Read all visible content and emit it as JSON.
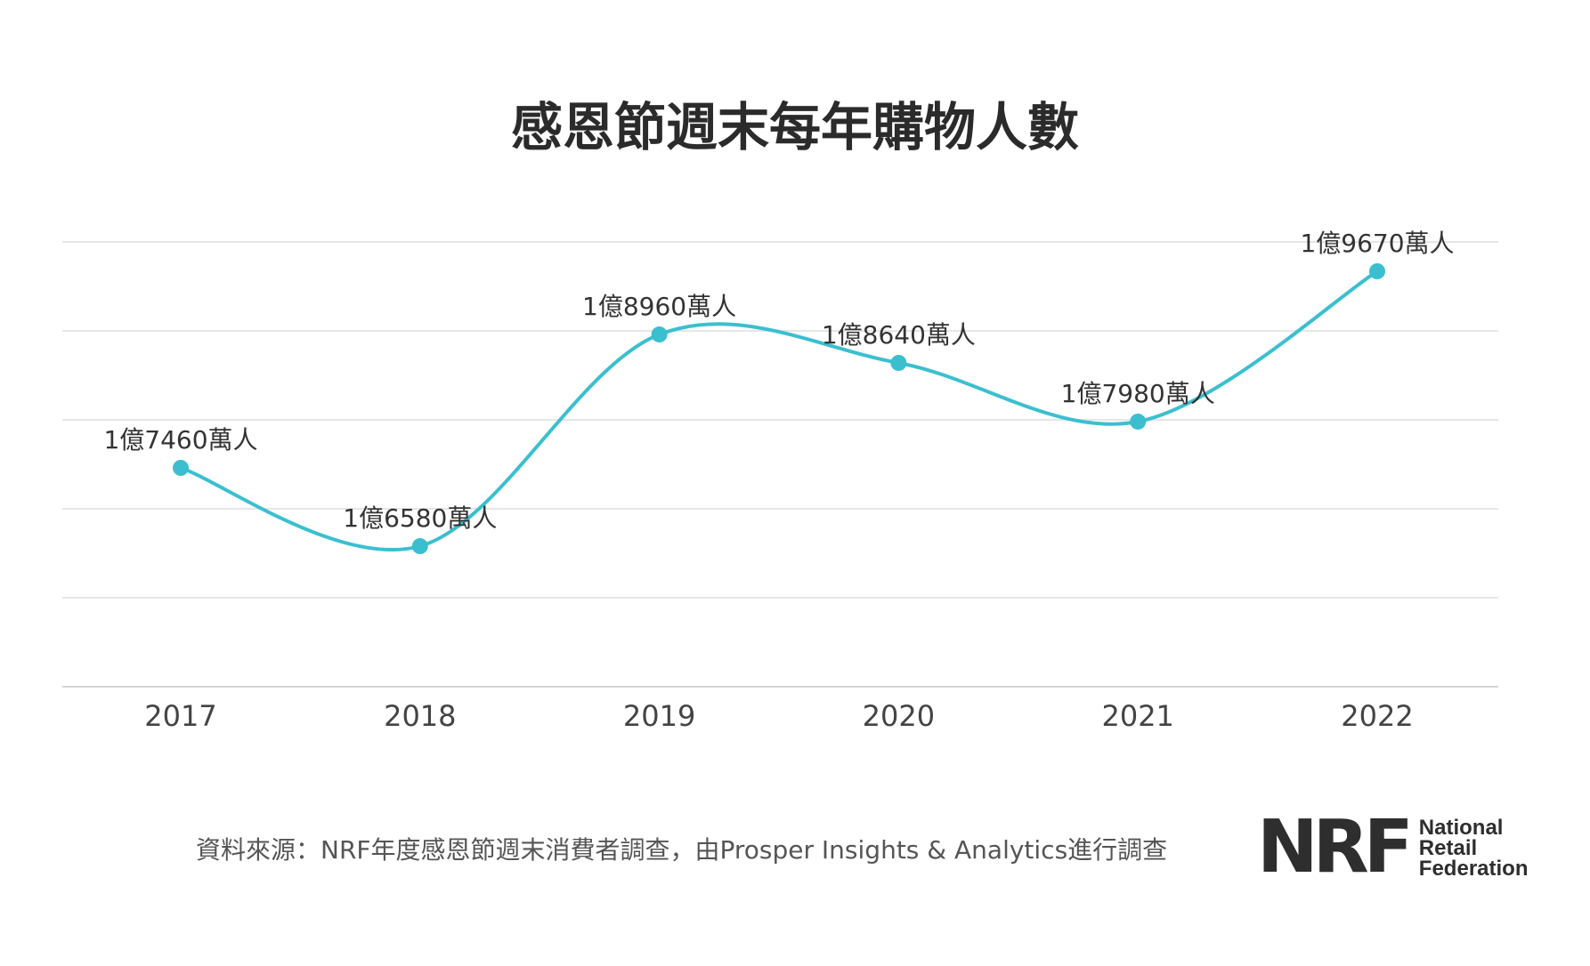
{
  "chart_data": {
    "type": "line",
    "title": "感恩節週末每年購物人數",
    "categories": [
      "2017",
      "2018",
      "2019",
      "2020",
      "2021",
      "2022"
    ],
    "values": [
      174.6,
      165.8,
      189.6,
      186.4,
      179.8,
      196.7
    ],
    "value_unit": "百萬人",
    "data_labels": [
      "1億7460萬人",
      "1億6580萬人",
      "1億8960萬人",
      "1億8640萬人",
      "1億7980萬人",
      "1億9670萬人"
    ],
    "xlabel": "",
    "ylabel": "",
    "ylim": [
      150,
      200
    ],
    "grid": true,
    "line_color": "#3bbfcf"
  },
  "source": "資料來源：NRF年度感恩節週末消費者調查，由Prosper Insights & Analytics進行調查",
  "logo": {
    "mark": "NRF",
    "lines": [
      "National",
      "Retail",
      "Federation"
    ],
    "color": "#2e2e2e"
  }
}
